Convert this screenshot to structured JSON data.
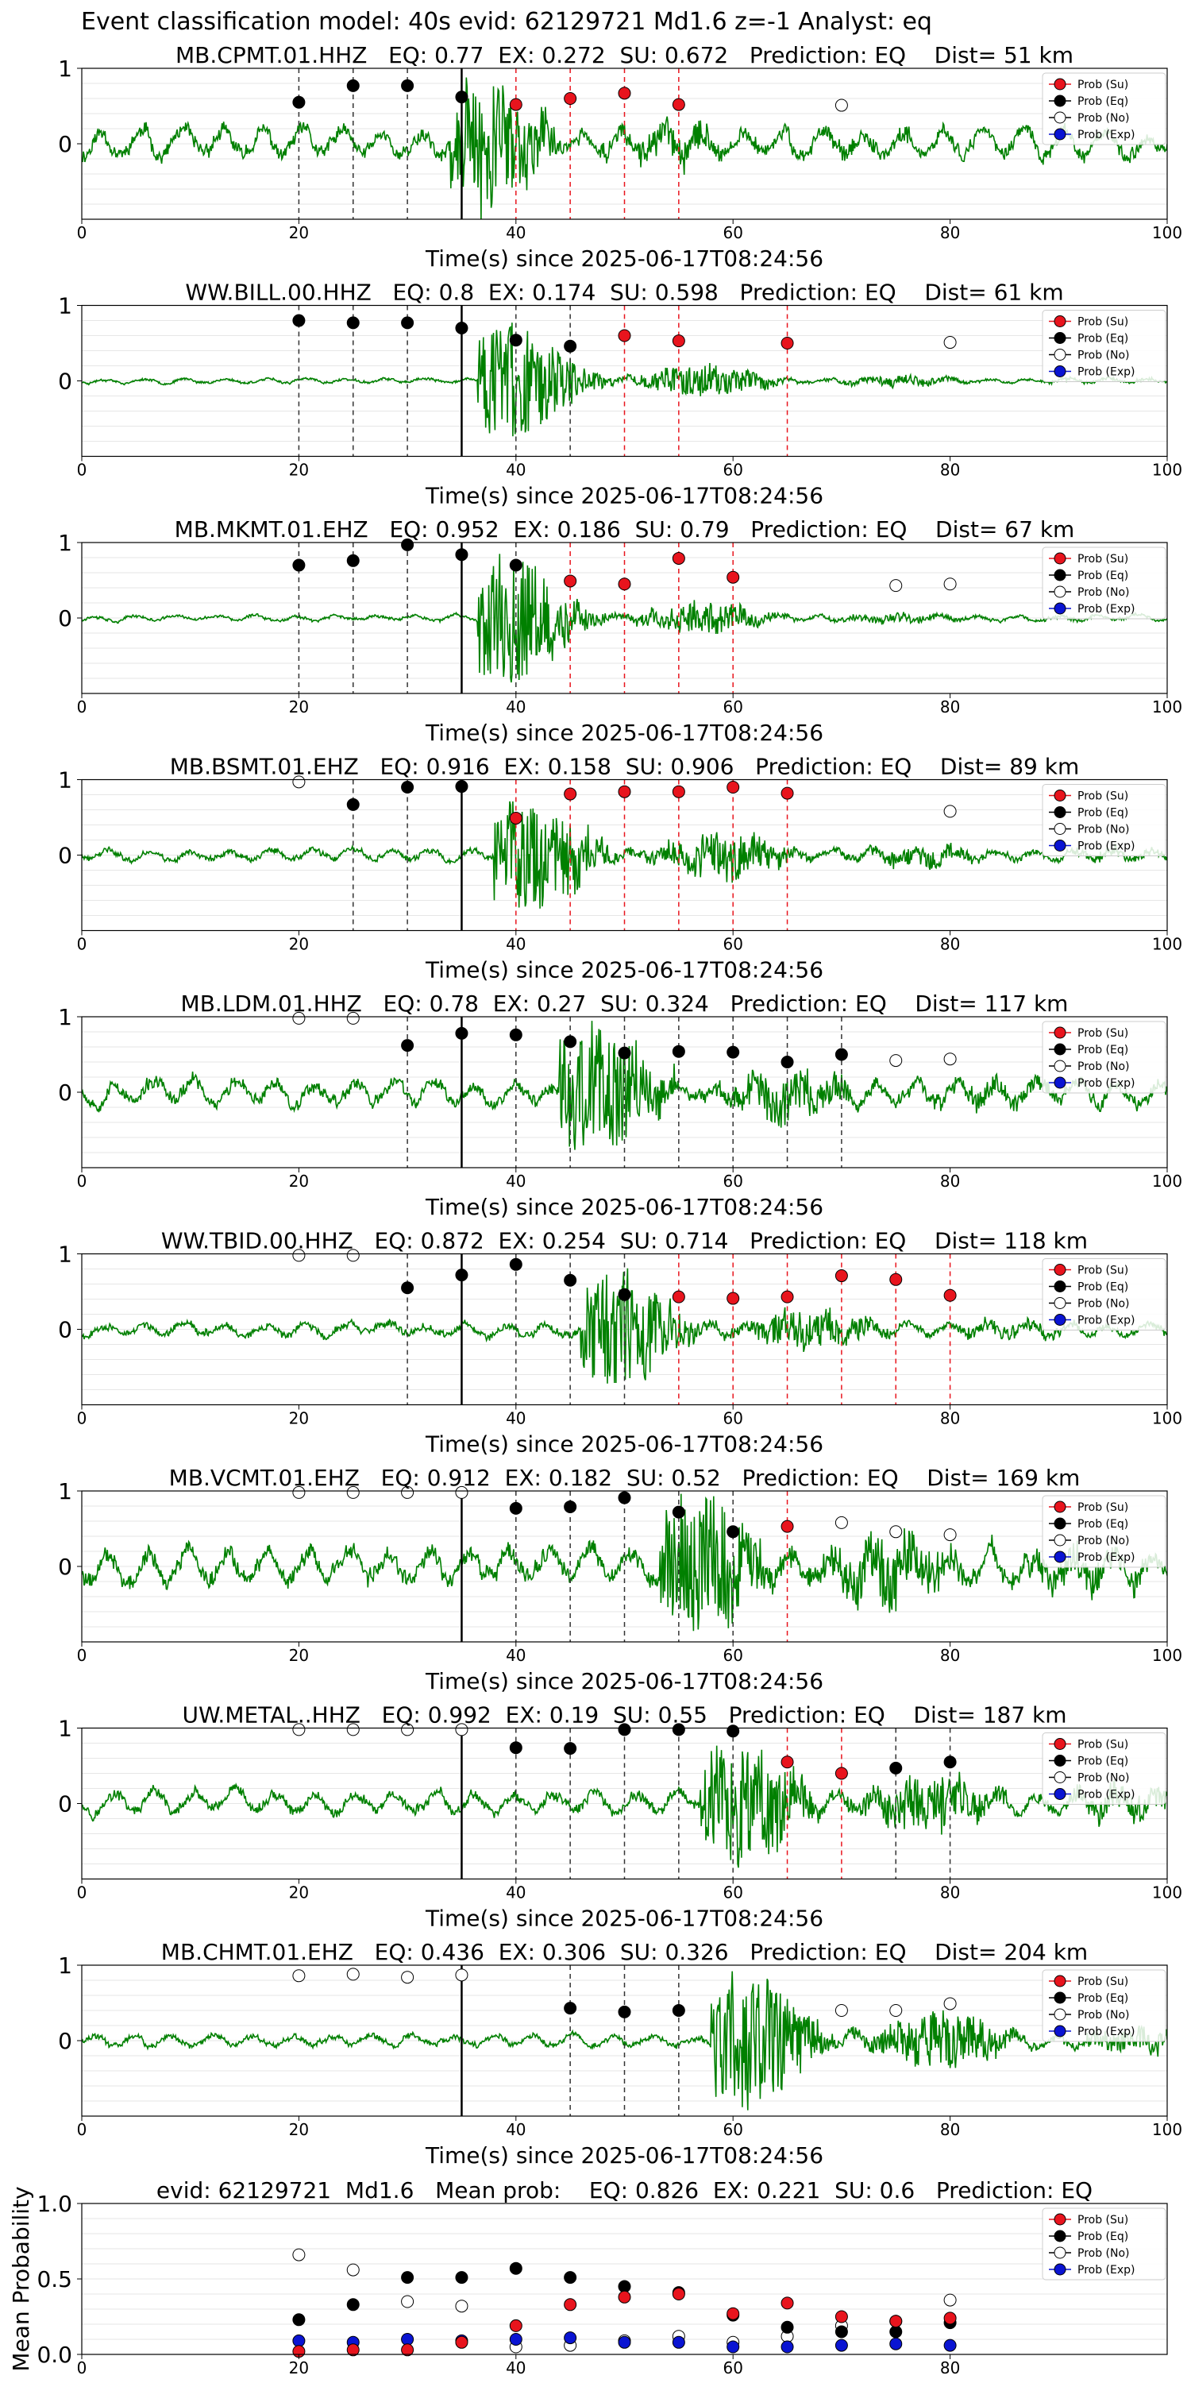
{
  "figure": {
    "title": "Event classification model: 40s evid: 62129721 Md1.6 z=-1 Analyst: eq"
  },
  "colors": {
    "waveform": "#008000",
    "su_marker": "#e8141d",
    "eq_marker": "#000000",
    "no_marker": "#ffffff",
    "exp_marker": "#0a14d2",
    "eq_vline": "#333333",
    "su_vline": "#e8141d",
    "pick_line": "#000000",
    "grid": "#e6e6e6"
  },
  "legend": [
    "Prob (Su)",
    "Prob (Eq)",
    "Prob (No)",
    "Prob (Exp)"
  ],
  "chart_data": [
    {
      "type": "line",
      "title": "MB.CPMT.01.HHZ   EQ: 0.77  EX: 0.272  SU: 0.672   Prediction: EQ    Dist= 51 km",
      "xlabel": "Time(s) since 2025-06-17T08:24:56",
      "xlim": [
        0,
        100
      ],
      "ylim": [
        -1,
        1
      ],
      "xticks": [
        0,
        20,
        40,
        60,
        80,
        100
      ],
      "yticks": [
        1,
        0
      ],
      "grid": true,
      "legend_position": "top-right",
      "pick_time": 35,
      "onset": 34,
      "noise_amp": 0.25,
      "signal_amp": 1.0,
      "decay": 12,
      "wave_seed": 11,
      "markers": [
        {
          "t": 20,
          "p": 0.55,
          "cls": "eq"
        },
        {
          "t": 25,
          "p": 0.77,
          "cls": "eq"
        },
        {
          "t": 30,
          "p": 0.77,
          "cls": "eq"
        },
        {
          "t": 35,
          "p": 0.62,
          "cls": "eq"
        },
        {
          "t": 40,
          "p": 0.52,
          "cls": "su"
        },
        {
          "t": 45,
          "p": 0.6,
          "cls": "su"
        },
        {
          "t": 50,
          "p": 0.67,
          "cls": "su"
        },
        {
          "t": 55,
          "p": 0.52,
          "cls": "su"
        },
        {
          "t": 70,
          "p": 0.51,
          "cls": "no"
        }
      ]
    },
    {
      "type": "line",
      "title": "WW.BILL.00.HHZ   EQ: 0.8  EX: 0.174  SU: 0.598   Prediction: EQ    Dist= 61 km",
      "xlabel": "Time(s) since 2025-06-17T08:24:56",
      "xlim": [
        0,
        100
      ],
      "ylim": [
        -1,
        1
      ],
      "xticks": [
        0,
        20,
        40,
        60,
        80,
        100
      ],
      "yticks": [
        1,
        0
      ],
      "grid": true,
      "legend_position": "top-right",
      "pick_time": 35,
      "onset": 36.5,
      "noise_amp": 0.04,
      "signal_amp": 0.9,
      "decay": 14,
      "wave_seed": 23,
      "markers": [
        {
          "t": 20,
          "p": 0.8,
          "cls": "eq"
        },
        {
          "t": 25,
          "p": 0.77,
          "cls": "eq"
        },
        {
          "t": 30,
          "p": 0.77,
          "cls": "eq"
        },
        {
          "t": 35,
          "p": 0.7,
          "cls": "eq"
        },
        {
          "t": 40,
          "p": 0.54,
          "cls": "eq"
        },
        {
          "t": 45,
          "p": 0.46,
          "cls": "eq"
        },
        {
          "t": 50,
          "p": 0.6,
          "cls": "su"
        },
        {
          "t": 55,
          "p": 0.53,
          "cls": "su"
        },
        {
          "t": 65,
          "p": 0.5,
          "cls": "su"
        },
        {
          "t": 80,
          "p": 0.51,
          "cls": "no"
        }
      ]
    },
    {
      "type": "line",
      "title": "MB.MKMT.01.EHZ   EQ: 0.952  EX: 0.186  SU: 0.79   Prediction: EQ    Dist= 67 km",
      "xlabel": "Time(s) since 2025-06-17T08:24:56",
      "xlim": [
        0,
        100
      ],
      "ylim": [
        -1,
        1
      ],
      "xticks": [
        0,
        20,
        40,
        60,
        80,
        100
      ],
      "yticks": [
        1,
        0
      ],
      "grid": true,
      "legend_position": "top-right",
      "pick_time": 35,
      "onset": 36.5,
      "noise_amp": 0.05,
      "signal_amp": 1.0,
      "decay": 13,
      "wave_seed": 37,
      "markers": [
        {
          "t": 20,
          "p": 0.7,
          "cls": "eq"
        },
        {
          "t": 25,
          "p": 0.76,
          "cls": "eq"
        },
        {
          "t": 30,
          "p": 0.97,
          "cls": "eq"
        },
        {
          "t": 35,
          "p": 0.84,
          "cls": "eq"
        },
        {
          "t": 40,
          "p": 0.7,
          "cls": "eq"
        },
        {
          "t": 45,
          "p": 0.49,
          "cls": "su"
        },
        {
          "t": 50,
          "p": 0.45,
          "cls": "su"
        },
        {
          "t": 55,
          "p": 0.79,
          "cls": "su"
        },
        {
          "t": 60,
          "p": 0.54,
          "cls": "su"
        },
        {
          "t": 75,
          "p": 0.43,
          "cls": "no"
        },
        {
          "t": 80,
          "p": 0.45,
          "cls": "no"
        }
      ]
    },
    {
      "type": "line",
      "title": "MB.BSMT.01.EHZ   EQ: 0.916  EX: 0.158  SU: 0.906   Prediction: EQ    Dist= 89 km",
      "xlabel": "Time(s) since 2025-06-17T08:24:56",
      "xlim": [
        0,
        100
      ],
      "ylim": [
        -1,
        1
      ],
      "xticks": [
        0,
        20,
        40,
        60,
        80,
        100
      ],
      "yticks": [
        1,
        0
      ],
      "grid": true,
      "legend_position": "top-right",
      "pick_time": 35,
      "onset": 38,
      "noise_amp": 0.1,
      "signal_amp": 0.8,
      "decay": 20,
      "wave_seed": 41,
      "markers": [
        {
          "t": 20,
          "p": 0.97,
          "cls": "no"
        },
        {
          "t": 25,
          "p": 0.67,
          "cls": "eq"
        },
        {
          "t": 30,
          "p": 0.9,
          "cls": "eq"
        },
        {
          "t": 35,
          "p": 0.91,
          "cls": "eq"
        },
        {
          "t": 40,
          "p": 0.49,
          "cls": "su"
        },
        {
          "t": 45,
          "p": 0.81,
          "cls": "su"
        },
        {
          "t": 50,
          "p": 0.84,
          "cls": "su"
        },
        {
          "t": 55,
          "p": 0.84,
          "cls": "su"
        },
        {
          "t": 60,
          "p": 0.9,
          "cls": "su"
        },
        {
          "t": 65,
          "p": 0.82,
          "cls": "su"
        },
        {
          "t": 80,
          "p": 0.58,
          "cls": "no"
        }
      ]
    },
    {
      "type": "line",
      "title": "MB.LDM.01.HHZ   EQ: 0.78  EX: 0.27  SU: 0.324   Prediction: EQ    Dist= 117 km",
      "xlabel": "Time(s) since 2025-06-17T08:24:56",
      "xlim": [
        0,
        100
      ],
      "ylim": [
        -1,
        1
      ],
      "xticks": [
        0,
        20,
        40,
        60,
        80,
        100
      ],
      "yticks": [
        1,
        0
      ],
      "grid": true,
      "legend_position": "top-right",
      "pick_time": 35,
      "onset": 44,
      "noise_amp": 0.22,
      "signal_amp": 0.9,
      "decay": 18,
      "wave_seed": 53,
      "markers": [
        {
          "t": 20,
          "p": 0.98,
          "cls": "no"
        },
        {
          "t": 25,
          "p": 0.98,
          "cls": "no"
        },
        {
          "t": 30,
          "p": 0.62,
          "cls": "eq"
        },
        {
          "t": 35,
          "p": 0.78,
          "cls": "eq"
        },
        {
          "t": 40,
          "p": 0.76,
          "cls": "eq"
        },
        {
          "t": 45,
          "p": 0.67,
          "cls": "eq"
        },
        {
          "t": 50,
          "p": 0.52,
          "cls": "eq"
        },
        {
          "t": 55,
          "p": 0.54,
          "cls": "eq"
        },
        {
          "t": 60,
          "p": 0.53,
          "cls": "eq"
        },
        {
          "t": 65,
          "p": 0.4,
          "cls": "eq"
        },
        {
          "t": 70,
          "p": 0.5,
          "cls": "eq"
        },
        {
          "t": 75,
          "p": 0.42,
          "cls": "no"
        },
        {
          "t": 80,
          "p": 0.44,
          "cls": "no"
        }
      ]
    },
    {
      "type": "line",
      "title": "WW.TBID.00.HHZ   EQ: 0.872  EX: 0.254  SU: 0.714   Prediction: EQ    Dist= 118 km",
      "xlabel": "Time(s) since 2025-06-17T08:24:56",
      "xlim": [
        0,
        100
      ],
      "ylim": [
        -1,
        1
      ],
      "xticks": [
        0,
        20,
        40,
        60,
        80,
        100
      ],
      "yticks": [
        1,
        0
      ],
      "grid": true,
      "legend_position": "top-right",
      "pick_time": 35,
      "onset": 46,
      "noise_amp": 0.12,
      "signal_amp": 0.9,
      "decay": 16,
      "wave_seed": 67,
      "markers": [
        {
          "t": 20,
          "p": 0.98,
          "cls": "no"
        },
        {
          "t": 25,
          "p": 0.98,
          "cls": "no"
        },
        {
          "t": 30,
          "p": 0.55,
          "cls": "eq"
        },
        {
          "t": 35,
          "p": 0.72,
          "cls": "eq"
        },
        {
          "t": 40,
          "p": 0.86,
          "cls": "eq"
        },
        {
          "t": 45,
          "p": 0.65,
          "cls": "eq"
        },
        {
          "t": 50,
          "p": 0.46,
          "cls": "eq"
        },
        {
          "t": 55,
          "p": 0.43,
          "cls": "su"
        },
        {
          "t": 60,
          "p": 0.41,
          "cls": "su"
        },
        {
          "t": 65,
          "p": 0.43,
          "cls": "su"
        },
        {
          "t": 70,
          "p": 0.71,
          "cls": "su"
        },
        {
          "t": 75,
          "p": 0.66,
          "cls": "su"
        },
        {
          "t": 80,
          "p": 0.45,
          "cls": "su"
        }
      ]
    },
    {
      "type": "line",
      "title": "MB.VCMT.01.EHZ   EQ: 0.912  EX: 0.182  SU: 0.52   Prediction: EQ    Dist= 169 km",
      "xlabel": "Time(s) since 2025-06-17T08:24:56",
      "xlim": [
        0,
        100
      ],
      "ylim": [
        -1,
        1
      ],
      "xticks": [
        0,
        20,
        40,
        60,
        80,
        100
      ],
      "yticks": [
        1,
        0
      ],
      "grid": true,
      "legend_position": "top-right",
      "pick_time": 35,
      "onset": 53,
      "noise_amp": 0.3,
      "signal_amp": 1.0,
      "decay": 22,
      "wave_seed": 79,
      "markers": [
        {
          "t": 20,
          "p": 0.98,
          "cls": "no"
        },
        {
          "t": 25,
          "p": 0.98,
          "cls": "no"
        },
        {
          "t": 30,
          "p": 0.98,
          "cls": "no"
        },
        {
          "t": 35,
          "p": 0.98,
          "cls": "no"
        },
        {
          "t": 40,
          "p": 0.77,
          "cls": "eq"
        },
        {
          "t": 45,
          "p": 0.79,
          "cls": "eq"
        },
        {
          "t": 50,
          "p": 0.91,
          "cls": "eq"
        },
        {
          "t": 55,
          "p": 0.72,
          "cls": "eq"
        },
        {
          "t": 60,
          "p": 0.46,
          "cls": "eq"
        },
        {
          "t": 65,
          "p": 0.53,
          "cls": "su"
        },
        {
          "t": 70,
          "p": 0.58,
          "cls": "no"
        },
        {
          "t": 75,
          "p": 0.46,
          "cls": "no"
        },
        {
          "t": 80,
          "p": 0.42,
          "cls": "no"
        }
      ]
    },
    {
      "type": "line",
      "title": "UW.METAL..HHZ   EQ: 0.992  EX: 0.19  SU: 0.55   Prediction: EQ    Dist= 187 km",
      "xlabel": "Time(s) since 2025-06-17T08:24:56",
      "xlim": [
        0,
        100
      ],
      "ylim": [
        -1,
        1
      ],
      "xticks": [
        0,
        20,
        40,
        60,
        80,
        100
      ],
      "yticks": [
        1,
        0
      ],
      "grid": true,
      "legend_position": "top-right",
      "pick_time": 35,
      "onset": 57,
      "noise_amp": 0.18,
      "signal_amp": 0.8,
      "decay": 25,
      "wave_seed": 97,
      "markers": [
        {
          "t": 20,
          "p": 0.98,
          "cls": "no"
        },
        {
          "t": 25,
          "p": 0.98,
          "cls": "no"
        },
        {
          "t": 30,
          "p": 0.98,
          "cls": "no"
        },
        {
          "t": 35,
          "p": 0.98,
          "cls": "no"
        },
        {
          "t": 40,
          "p": 0.74,
          "cls": "eq"
        },
        {
          "t": 45,
          "p": 0.73,
          "cls": "eq"
        },
        {
          "t": 50,
          "p": 0.98,
          "cls": "eq"
        },
        {
          "t": 55,
          "p": 0.98,
          "cls": "eq"
        },
        {
          "t": 60,
          "p": 0.96,
          "cls": "eq"
        },
        {
          "t": 65,
          "p": 0.55,
          "cls": "su"
        },
        {
          "t": 70,
          "p": 0.4,
          "cls": "su"
        },
        {
          "t": 75,
          "p": 0.47,
          "cls": "eq"
        },
        {
          "t": 80,
          "p": 0.55,
          "cls": "eq"
        }
      ]
    },
    {
      "type": "line",
      "title": "MB.CHMT.01.EHZ   EQ: 0.436  EX: 0.306  SU: 0.326   Prediction: EQ    Dist= 204 km",
      "xlabel": "Time(s) since 2025-06-17T08:24:56",
      "xlim": [
        0,
        100
      ],
      "ylim": [
        -1,
        1
      ],
      "xticks": [
        0,
        20,
        40,
        60,
        80,
        100
      ],
      "yticks": [
        1,
        0
      ],
      "grid": true,
      "legend_position": "top-right",
      "pick_time": 35,
      "onset": 58,
      "noise_amp": 0.1,
      "signal_amp": 1.0,
      "decay": 20,
      "wave_seed": 113,
      "markers": [
        {
          "t": 20,
          "p": 0.86,
          "cls": "no"
        },
        {
          "t": 25,
          "p": 0.88,
          "cls": "no"
        },
        {
          "t": 30,
          "p": 0.84,
          "cls": "no"
        },
        {
          "t": 35,
          "p": 0.87,
          "cls": "no"
        },
        {
          "t": 45,
          "p": 0.43,
          "cls": "eq"
        },
        {
          "t": 50,
          "p": 0.38,
          "cls": "eq"
        },
        {
          "t": 55,
          "p": 0.4,
          "cls": "eq"
        },
        {
          "t": 70,
          "p": 0.4,
          "cls": "no"
        },
        {
          "t": 75,
          "p": 0.4,
          "cls": "no"
        },
        {
          "t": 80,
          "p": 0.49,
          "cls": "no"
        }
      ]
    },
    {
      "type": "scatter",
      "title": "evid: 62129721  Md1.6   Mean prob:    EQ: 0.826  EX: 0.221  SU: 0.6   Prediction: EQ",
      "xlabel": "",
      "ylabel": "Mean Probability",
      "xlim": [
        0,
        100
      ],
      "ylim": [
        0,
        1
      ],
      "xticks": [
        0,
        20,
        40,
        60,
        80
      ],
      "yticks": [
        1.0,
        0.5,
        0.0
      ],
      "ytick_labels": [
        "1.0",
        "0.5",
        "0.0"
      ],
      "grid": true,
      "legend_position": "top-right",
      "series": [
        {
          "name": "Prob (Su)",
          "x": [
            20,
            25,
            30,
            35,
            40,
            45,
            50,
            55,
            60,
            65,
            70,
            75,
            80
          ],
          "values": [
            0.02,
            0.03,
            0.03,
            0.08,
            0.19,
            0.33,
            0.38,
            0.4,
            0.27,
            0.34,
            0.25,
            0.22,
            0.24
          ]
        },
        {
          "name": "Prob (Eq)",
          "x": [
            20,
            25,
            30,
            35,
            40,
            45,
            50,
            55,
            60,
            65,
            70,
            75,
            80
          ],
          "values": [
            0.23,
            0.33,
            0.51,
            0.51,
            0.57,
            0.51,
            0.45,
            0.41,
            0.26,
            0.18,
            0.15,
            0.15,
            0.21
          ]
        },
        {
          "name": "Prob (No)",
          "x": [
            20,
            25,
            30,
            35,
            40,
            45,
            50,
            55,
            60,
            65,
            70,
            75,
            80
          ],
          "values": [
            0.66,
            0.56,
            0.35,
            0.32,
            0.05,
            0.06,
            0.09,
            0.12,
            0.08,
            0.12,
            0.19,
            0.22,
            0.36
          ]
        },
        {
          "name": "Prob (Exp)",
          "x": [
            20,
            25,
            30,
            35,
            40,
            45,
            50,
            55,
            60,
            65,
            70,
            75,
            80
          ],
          "values": [
            0.09,
            0.08,
            0.1,
            0.09,
            0.1,
            0.11,
            0.08,
            0.08,
            0.05,
            0.05,
            0.06,
            0.07,
            0.06
          ]
        }
      ]
    }
  ]
}
